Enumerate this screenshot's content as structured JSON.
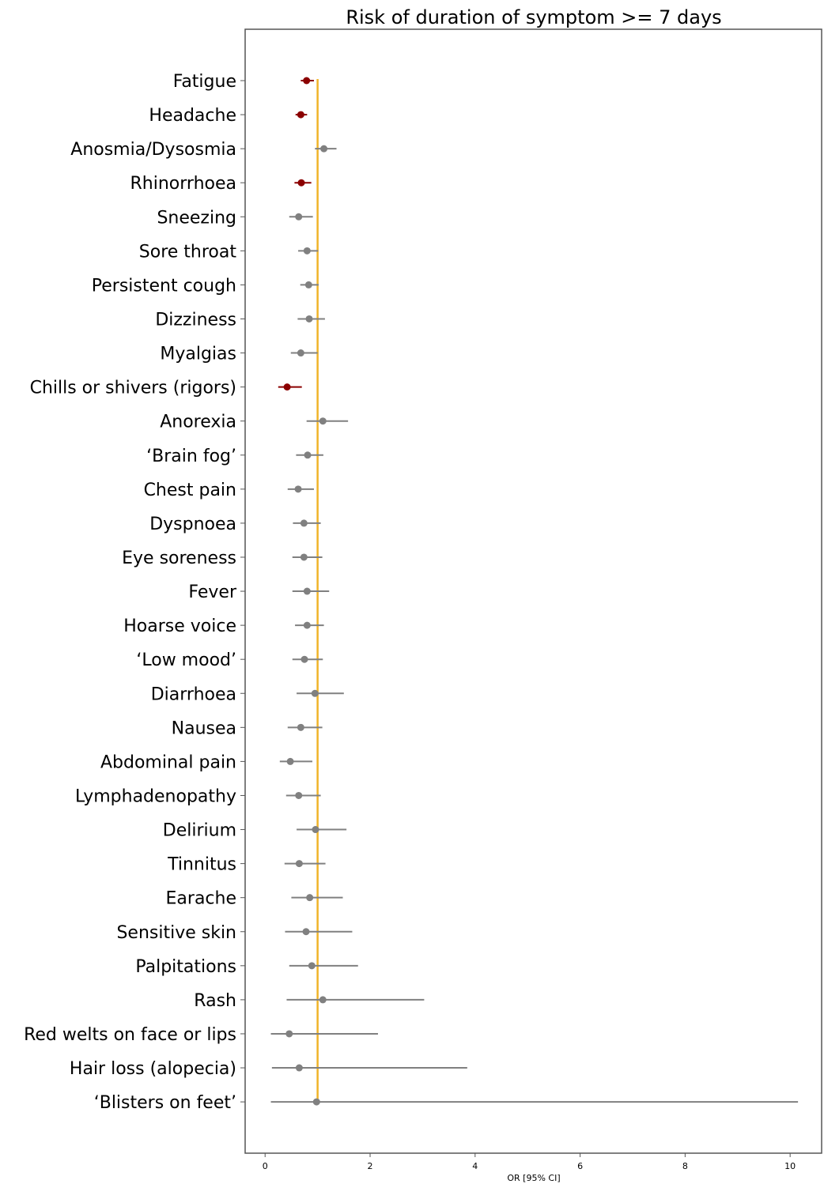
{
  "chart_data": {
    "type": "scatter",
    "subtype": "forest-plot",
    "title": "Risk of duration of symptom >= 7 days",
    "xlabel": "OR [95% CI]",
    "ylabel": "",
    "xlim": [
      -0.38,
      10.6
    ],
    "xticks": [
      0,
      2,
      4,
      6,
      8,
      10
    ],
    "reference_line": 1,
    "grid": false,
    "colors": {
      "significant": "#8b0000",
      "nonsignificant": "#808080",
      "reference": "#f0b429",
      "axis": "#555555"
    },
    "categories": [
      "Fatigue",
      "Headache",
      "Anosmia/Dysosmia",
      "Rhinorrhoea",
      "Sneezing",
      "Sore throat",
      "Persistent cough",
      "Dizziness",
      "Myalgias",
      "Chills or shivers (rigors)",
      "Anorexia",
      "‘Brain fog’",
      "Chest pain",
      "Dyspnoea",
      "Eye soreness",
      "Fever",
      "Hoarse voice",
      "‘Low mood’",
      "Diarrhoea",
      "Nausea",
      "Abdominal pain",
      "Lymphadenopathy",
      "Delirium",
      "Tinnitus",
      "Earache",
      "Sensitive skin",
      "Palpitations",
      "Rash",
      "Red welts on face or lips",
      "Hair loss (alopecia)",
      "‘Blisters on feet’"
    ],
    "points": [
      {
        "or": 0.79,
        "lo": 0.68,
        "hi": 0.93,
        "significant": true
      },
      {
        "or": 0.68,
        "lo": 0.58,
        "hi": 0.8,
        "significant": true
      },
      {
        "or": 1.12,
        "lo": 0.95,
        "hi": 1.36,
        "significant": false
      },
      {
        "or": 0.69,
        "lo": 0.56,
        "hi": 0.88,
        "significant": true
      },
      {
        "or": 0.64,
        "lo": 0.46,
        "hi": 0.91,
        "significant": false
      },
      {
        "or": 0.8,
        "lo": 0.63,
        "hi": 1.01,
        "significant": false
      },
      {
        "or": 0.83,
        "lo": 0.67,
        "hi": 1.02,
        "significant": false
      },
      {
        "or": 0.84,
        "lo": 0.62,
        "hi": 1.14,
        "significant": false
      },
      {
        "or": 0.68,
        "lo": 0.49,
        "hi": 1.0,
        "significant": false
      },
      {
        "or": 0.42,
        "lo": 0.25,
        "hi": 0.7,
        "significant": true
      },
      {
        "or": 1.1,
        "lo": 0.79,
        "hi": 1.58,
        "significant": false
      },
      {
        "or": 0.81,
        "lo": 0.59,
        "hi": 1.11,
        "significant": false
      },
      {
        "or": 0.63,
        "lo": 0.43,
        "hi": 0.93,
        "significant": false
      },
      {
        "or": 0.74,
        "lo": 0.53,
        "hi": 1.06,
        "significant": false
      },
      {
        "or": 0.74,
        "lo": 0.52,
        "hi": 1.09,
        "significant": false
      },
      {
        "or": 0.8,
        "lo": 0.52,
        "hi": 1.22,
        "significant": false
      },
      {
        "or": 0.8,
        "lo": 0.57,
        "hi": 1.12,
        "significant": false
      },
      {
        "or": 0.75,
        "lo": 0.52,
        "hi": 1.1,
        "significant": false
      },
      {
        "or": 0.95,
        "lo": 0.6,
        "hi": 1.5,
        "significant": false
      },
      {
        "or": 0.68,
        "lo": 0.43,
        "hi": 1.09,
        "significant": false
      },
      {
        "or": 0.48,
        "lo": 0.28,
        "hi": 0.9,
        "significant": false
      },
      {
        "or": 0.64,
        "lo": 0.4,
        "hi": 1.06,
        "significant": false
      },
      {
        "or": 0.96,
        "lo": 0.6,
        "hi": 1.55,
        "significant": false
      },
      {
        "or": 0.65,
        "lo": 0.37,
        "hi": 1.15,
        "significant": false
      },
      {
        "or": 0.85,
        "lo": 0.5,
        "hi": 1.48,
        "significant": false
      },
      {
        "or": 0.78,
        "lo": 0.38,
        "hi": 1.66,
        "significant": false
      },
      {
        "or": 0.89,
        "lo": 0.46,
        "hi": 1.77,
        "significant": false
      },
      {
        "or": 1.1,
        "lo": 0.41,
        "hi": 3.03,
        "significant": false
      },
      {
        "or": 0.46,
        "lo": 0.11,
        "hi": 2.15,
        "significant": false
      },
      {
        "or": 0.65,
        "lo": 0.13,
        "hi": 3.85,
        "significant": false
      },
      {
        "or": 0.98,
        "lo": 0.11,
        "hi": 10.15,
        "significant": false
      }
    ]
  }
}
